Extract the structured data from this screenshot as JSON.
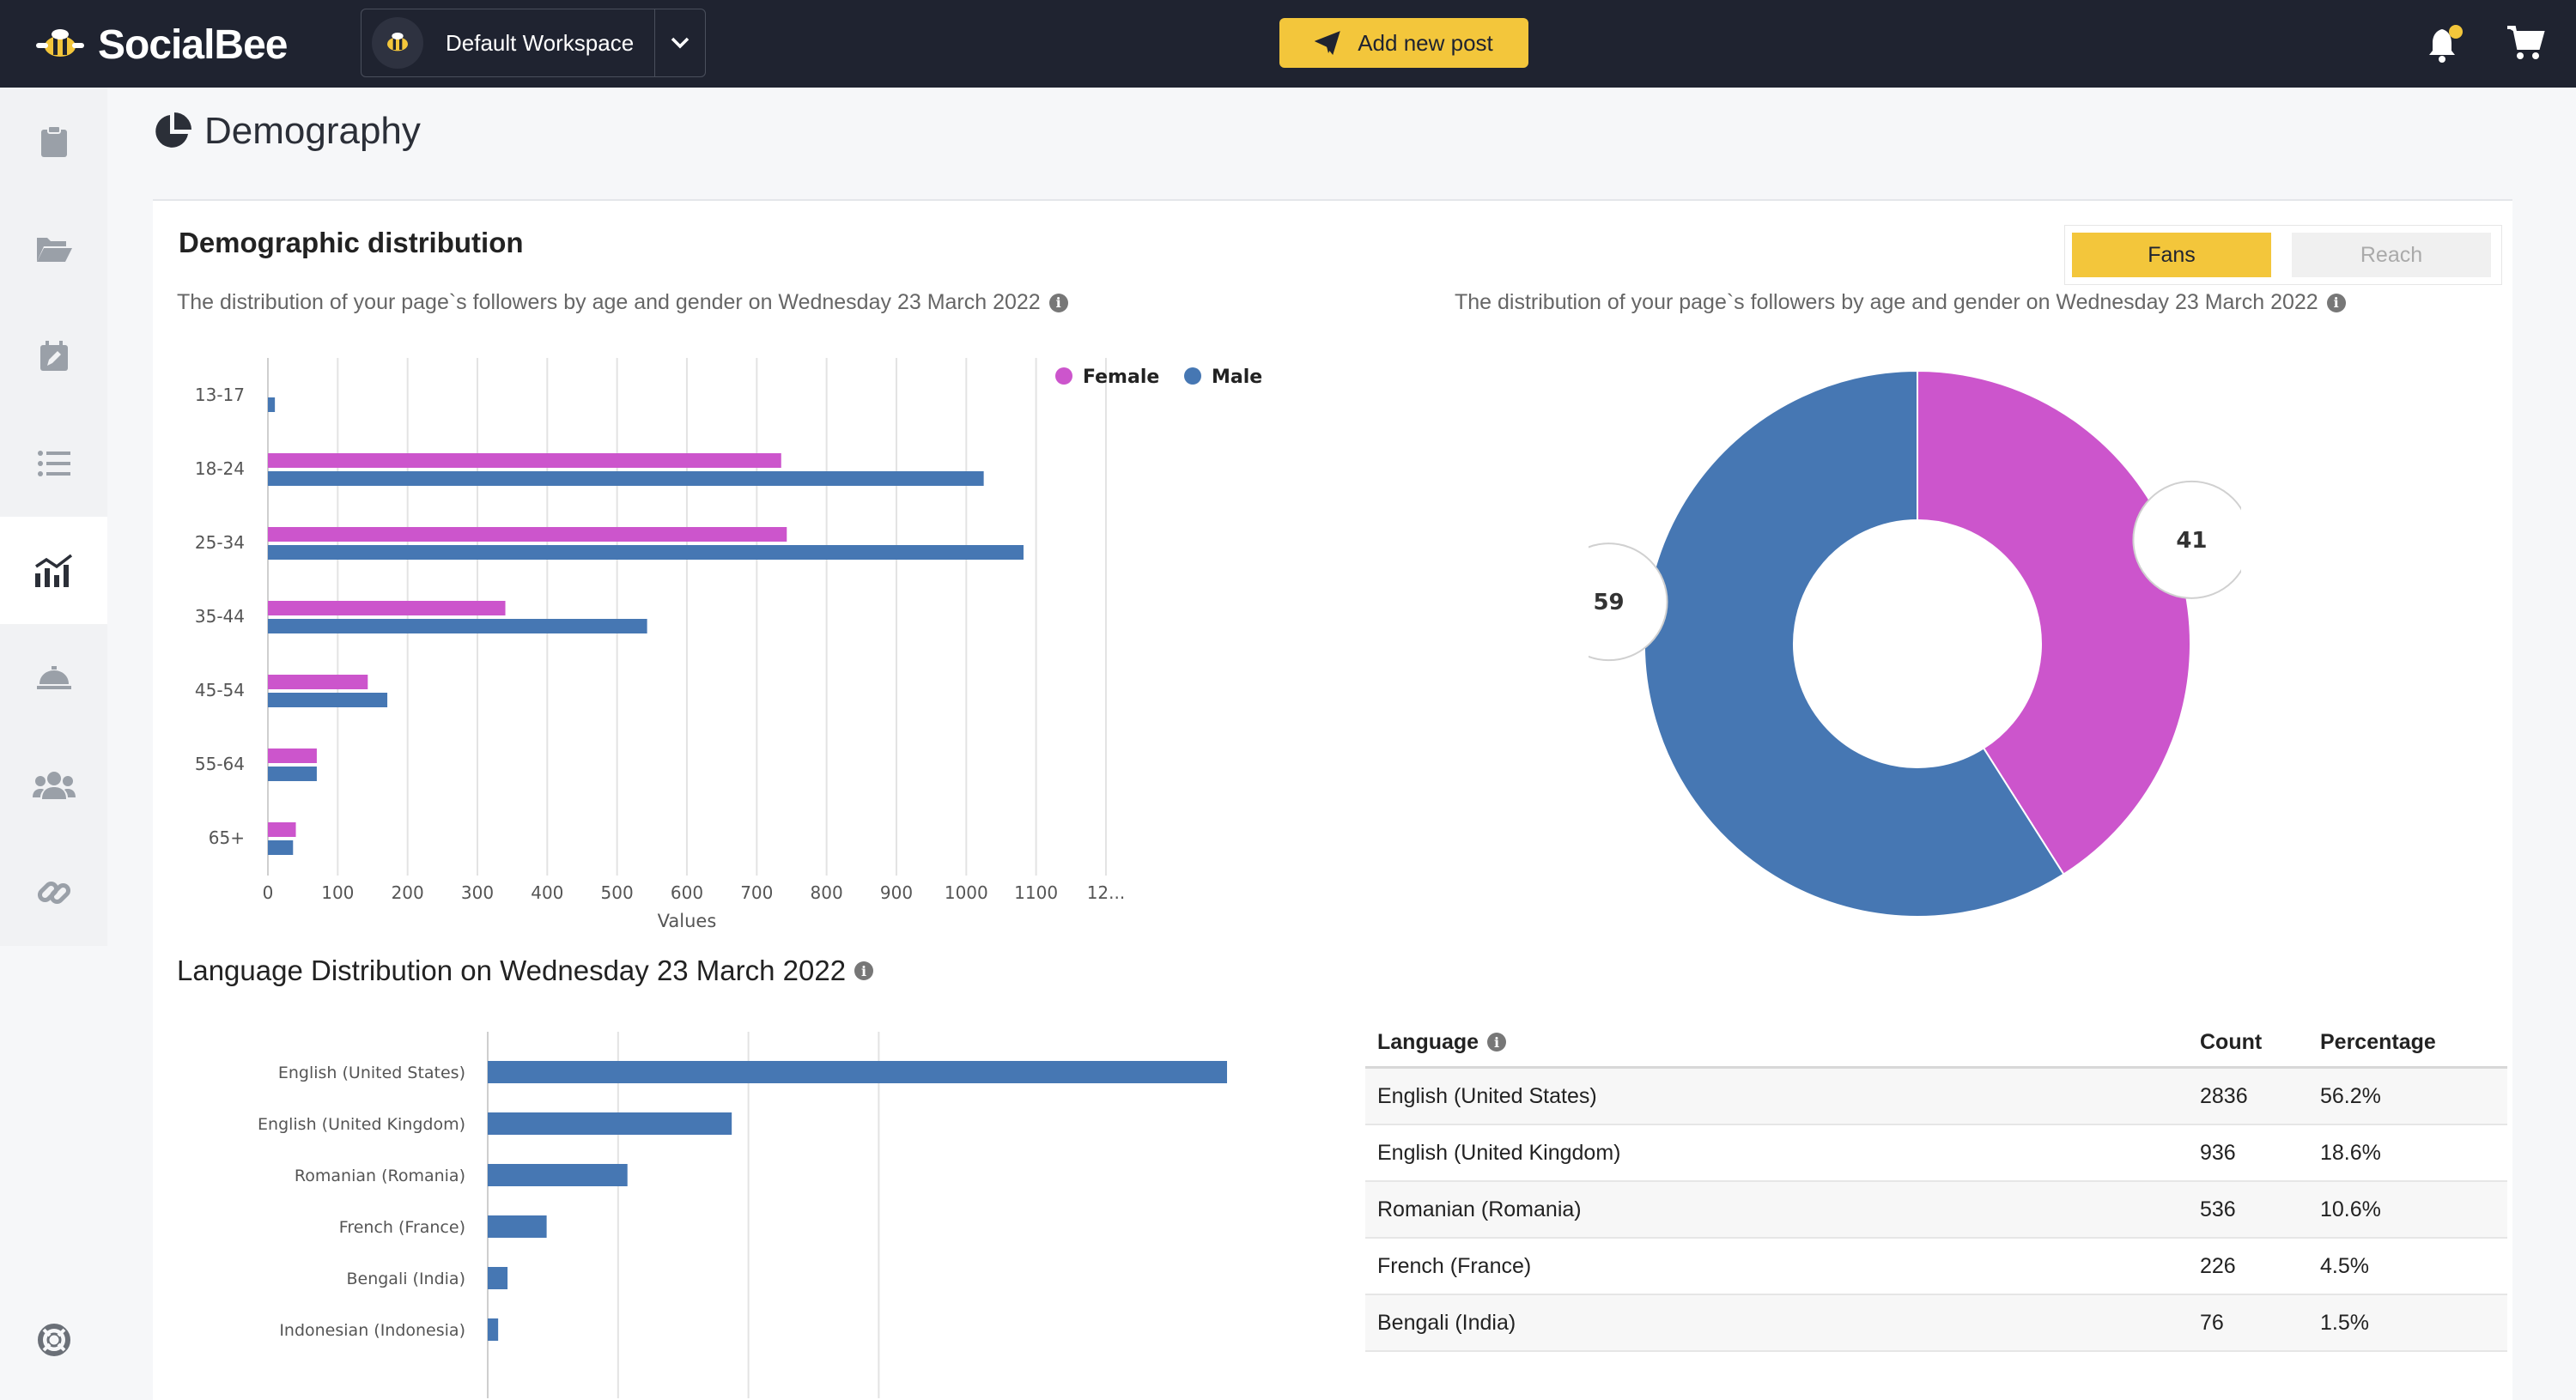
{
  "header": {
    "app_name": "SocialBee",
    "workspace_name": "Default Workspace",
    "add_post_label": "Add new post"
  },
  "page": {
    "title": "Demography"
  },
  "demographic": {
    "title": "Demographic distribution",
    "subtitle_left": "The distribution of your page`s followers by age and gender on Wednesday 23 March 2022",
    "subtitle_right": "The distribution of your page`s followers by age and gender on Wednesday 23 March 2022",
    "toggle": {
      "fans": "Fans",
      "reach": "Reach"
    }
  },
  "language": {
    "title": "Language Distribution on Wednesday 23 March 2022",
    "table": {
      "headers": [
        "Language",
        "Count",
        "Percentage"
      ],
      "rows": [
        [
          "English (United States)",
          "2836",
          "56.2%"
        ],
        [
          "English (United Kingdom)",
          "936",
          "18.6%"
        ],
        [
          "Romanian (Romania)",
          "536",
          "10.6%"
        ],
        [
          "French (France)",
          "226",
          "4.5%"
        ],
        [
          "Bengali (India)",
          "76",
          "1.5%"
        ]
      ]
    }
  },
  "colors": {
    "female": "#cc55cc",
    "male": "#4677b3",
    "accent": "#f3c63b",
    "topbar": "#1f2330"
  },
  "chart_data": [
    {
      "type": "bar",
      "orientation": "horizontal",
      "categories": [
        "13-17",
        "18-24",
        "25-34",
        "35-44",
        "45-54",
        "55-64",
        "65+"
      ],
      "series": [
        {
          "name": "Female",
          "values": [
            0,
            735,
            743,
            340,
            143,
            70,
            40
          ]
        },
        {
          "name": "Male",
          "values": [
            10,
            1025,
            1082,
            543,
            171,
            70,
            36
          ]
        }
      ],
      "ticks": [
        "0",
        "100",
        "200",
        "300",
        "400",
        "500",
        "600",
        "700",
        "800",
        "900",
        "1000",
        "1100",
        "12..."
      ],
      "xlabel": "Values",
      "xlim": [
        0,
        1200
      ],
      "legend": "top-right",
      "grid": true
    },
    {
      "type": "pie",
      "donut": true,
      "labels": [
        "Female",
        "Male"
      ],
      "values": [
        41,
        59
      ]
    },
    {
      "type": "bar",
      "orientation": "horizontal",
      "categories": [
        "English (United States)",
        "English (United Kingdom)",
        "Romanian (Romania)",
        "French (France)",
        "Bengali (India)",
        "Indonesian (Indonesia)"
      ],
      "values": [
        2836,
        936,
        536,
        226,
        76,
        40
      ],
      "xlim": [
        0,
        3000
      ],
      "grid": true
    }
  ]
}
